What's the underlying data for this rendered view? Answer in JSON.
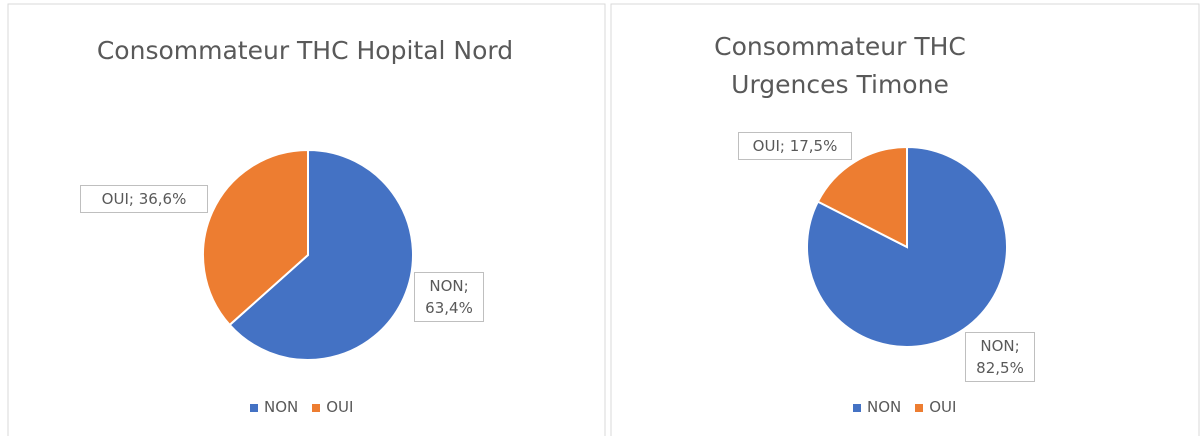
{
  "chart_data": [
    {
      "type": "pie",
      "title": "Consommateur THC Hopital Nord",
      "categories": [
        "NON",
        "OUI"
      ],
      "values": [
        63.4,
        36.6
      ],
      "value_labels": [
        "NON; 63,4%",
        "OUI; 36,6%"
      ],
      "colors": [
        "#4472c4",
        "#ed7d31"
      ],
      "legend": "bottom"
    },
    {
      "type": "pie",
      "title": "Consommateur THC Urgences Timone",
      "categories": [
        "NON",
        "OUI"
      ],
      "values": [
        82.5,
        17.5
      ],
      "value_labels": [
        "NON; 82,5%",
        "OUI; 17,5%"
      ],
      "colors": [
        "#4472c4",
        "#ed7d31"
      ],
      "legend": "bottom"
    }
  ]
}
